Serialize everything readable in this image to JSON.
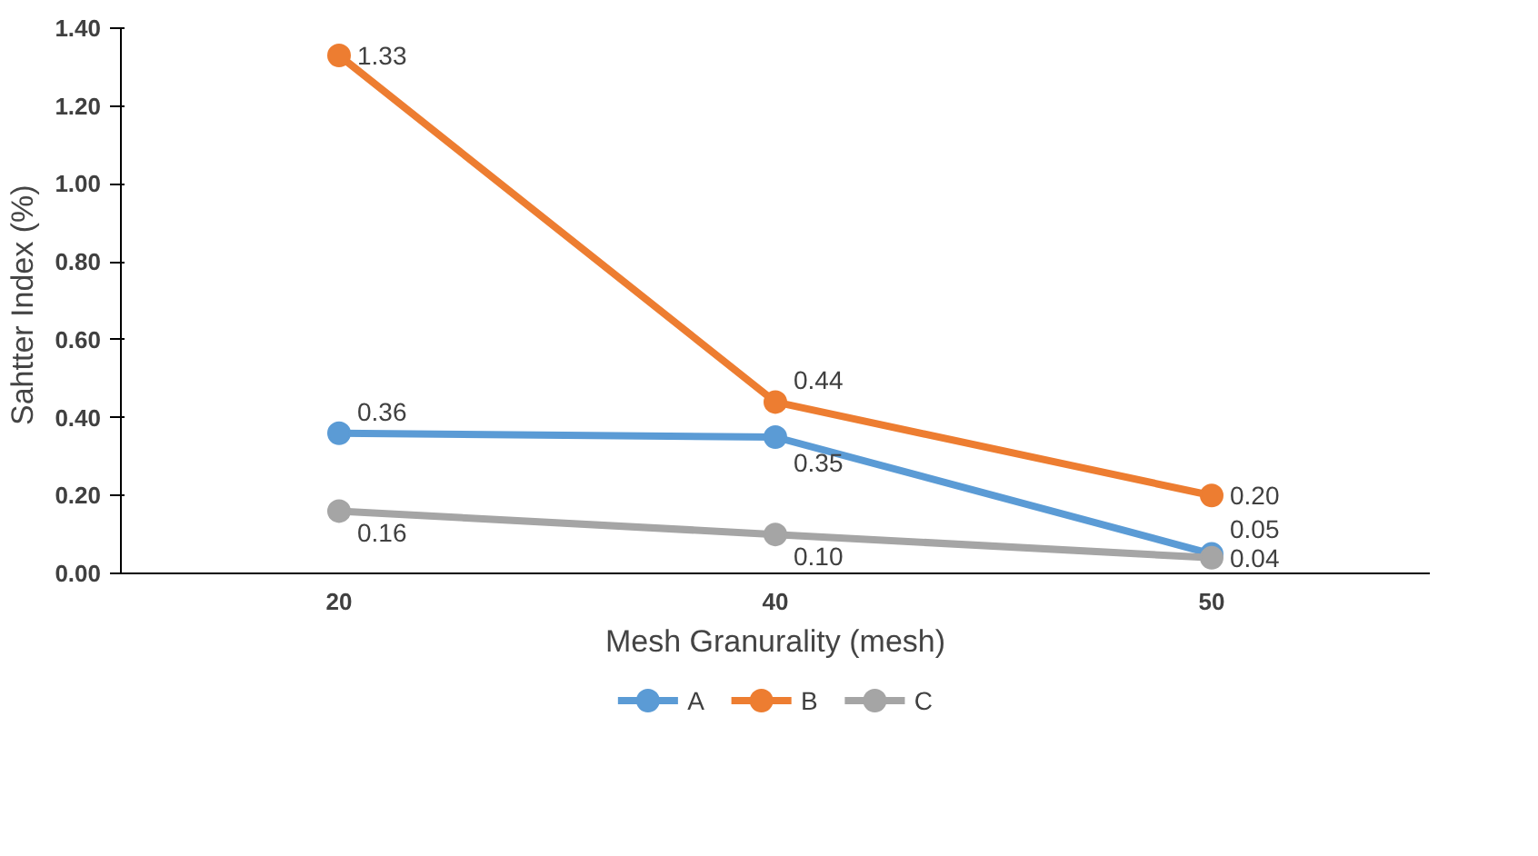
{
  "chart_data": {
    "type": "line",
    "xlabel": "Mesh Granurality (mesh)",
    "ylabel": "Sahtter Index  (%)",
    "categories": [
      "20",
      "40",
      "50"
    ],
    "series": [
      {
        "name": "A",
        "color": "#5b9bd5",
        "values": [
          0.36,
          0.35,
          0.05
        ],
        "value_labels": [
          "0.36",
          "0.35",
          "0.05"
        ]
      },
      {
        "name": "B",
        "color": "#ed7d31",
        "values": [
          1.33,
          0.44,
          0.2
        ],
        "value_labels": [
          "1.33",
          "0.44",
          "0.20"
        ]
      },
      {
        "name": "C",
        "color": "#a5a5a5",
        "values": [
          0.16,
          0.1,
          0.04
        ],
        "value_labels": [
          "0.16",
          "0.10",
          "0.04"
        ]
      }
    ],
    "ylim": [
      0,
      1.4
    ],
    "yticks": [
      {
        "value": 0,
        "label": "0.00"
      },
      {
        "value": 0.2,
        "label": "0.20"
      },
      {
        "value": 0.4,
        "label": "0.40"
      },
      {
        "value": 0.6,
        "label": "0.60"
      },
      {
        "value": 0.8,
        "label": "0.80"
      },
      {
        "value": 1.0,
        "label": "1.00"
      },
      {
        "value": 1.2,
        "label": "1.20"
      },
      {
        "value": 1.4,
        "label": "1.40"
      }
    ],
    "legend": "bottom",
    "marker": "circle",
    "line_style": "solid",
    "grid": false
  }
}
